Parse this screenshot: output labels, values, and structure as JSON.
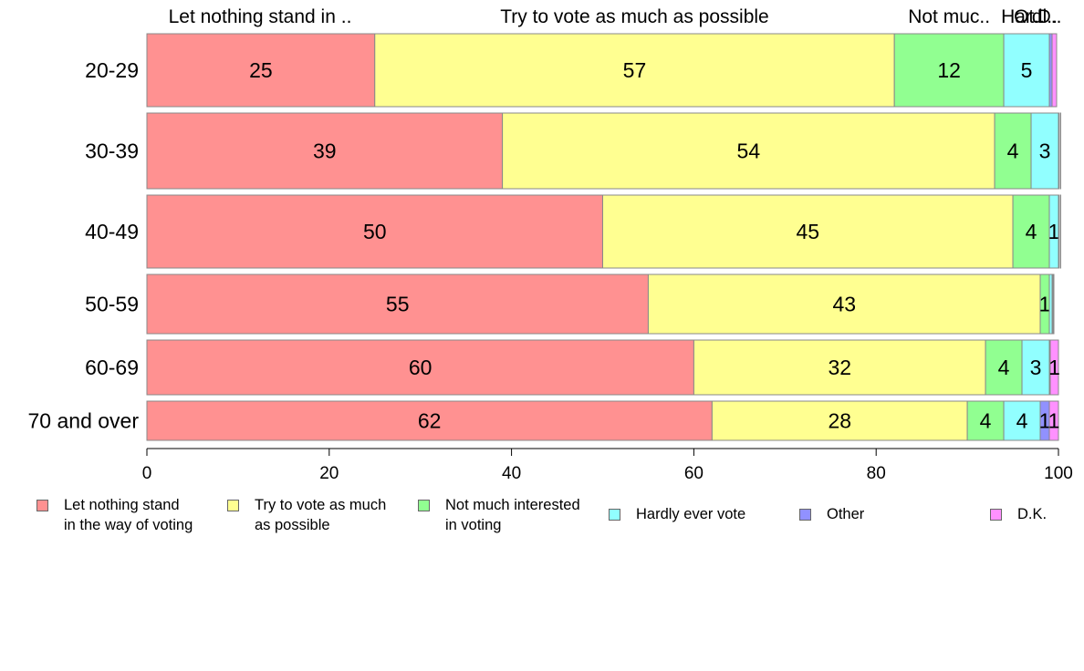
{
  "chart_data": {
    "type": "bar",
    "orientation": "horizontal",
    "stacked": true,
    "categories": [
      "20-29",
      "30-39",
      "40-49",
      "50-59",
      "60-69",
      "70 and over"
    ],
    "series": [
      {
        "name": "Let nothing stand\nin the way of voting",
        "color": "#ff9191",
        "values": [
          25,
          39,
          50,
          55,
          60,
          62
        ]
      },
      {
        "name": "Try to vote as much\nas possible",
        "color": "#ffff91",
        "values": [
          57,
          54,
          45,
          43,
          32,
          28
        ]
      },
      {
        "name": "Not much interested\nin voting",
        "color": "#91ff91",
        "values": [
          12,
          4,
          4,
          1,
          4,
          4
        ]
      },
      {
        "name": "Hardly ever vote",
        "color": "#91ffff",
        "values": [
          5,
          3,
          1,
          0.3,
          3,
          4
        ]
      },
      {
        "name": "Other",
        "color": "#9191ff",
        "values": [
          0.3,
          0.2,
          0.2,
          0.1,
          0.1,
          1
        ]
      },
      {
        "name": "D.K.",
        "color": "#ff91ff",
        "values": [
          0.5,
          0.3,
          0.3,
          0.1,
          1,
          1
        ]
      }
    ],
    "data_labels": [
      [
        "25",
        "57",
        "12",
        "5",
        "",
        ""
      ],
      [
        "39",
        "54",
        "4",
        "3",
        "",
        ""
      ],
      [
        "50",
        "45",
        "4",
        "1",
        "",
        ""
      ],
      [
        "55",
        "43",
        "1",
        "",
        "",
        ""
      ],
      [
        "60",
        "32",
        "4",
        "3",
        "",
        "1"
      ],
      [
        "62",
        "28",
        "4",
        "4",
        "1",
        "1"
      ]
    ],
    "top_labels": [
      "Let nothing stand in ..",
      "Try to vote as much as possible",
      "Not muc..",
      "Hardl..",
      "Ot..",
      "D.."
    ],
    "xticks": [
      0,
      20,
      40,
      60,
      80,
      100
    ],
    "xlim": [
      0,
      100
    ],
    "title": "",
    "xlabel": "",
    "ylabel": "",
    "grid": false,
    "legend_position": "bottom"
  },
  "legend": [
    {
      "label": "Let nothing stand\nin the way of voting",
      "color": "#ff9191"
    },
    {
      "label": "Try to vote as much\nas possible",
      "color": "#ffff91"
    },
    {
      "label": "Not much interested\nin voting",
      "color": "#91ff91"
    },
    {
      "label": "Hardly ever vote",
      "color": "#91ffff"
    },
    {
      "label": "Other",
      "color": "#9191ff"
    },
    {
      "label": "D.K.",
      "color": "#ff91ff"
    }
  ]
}
